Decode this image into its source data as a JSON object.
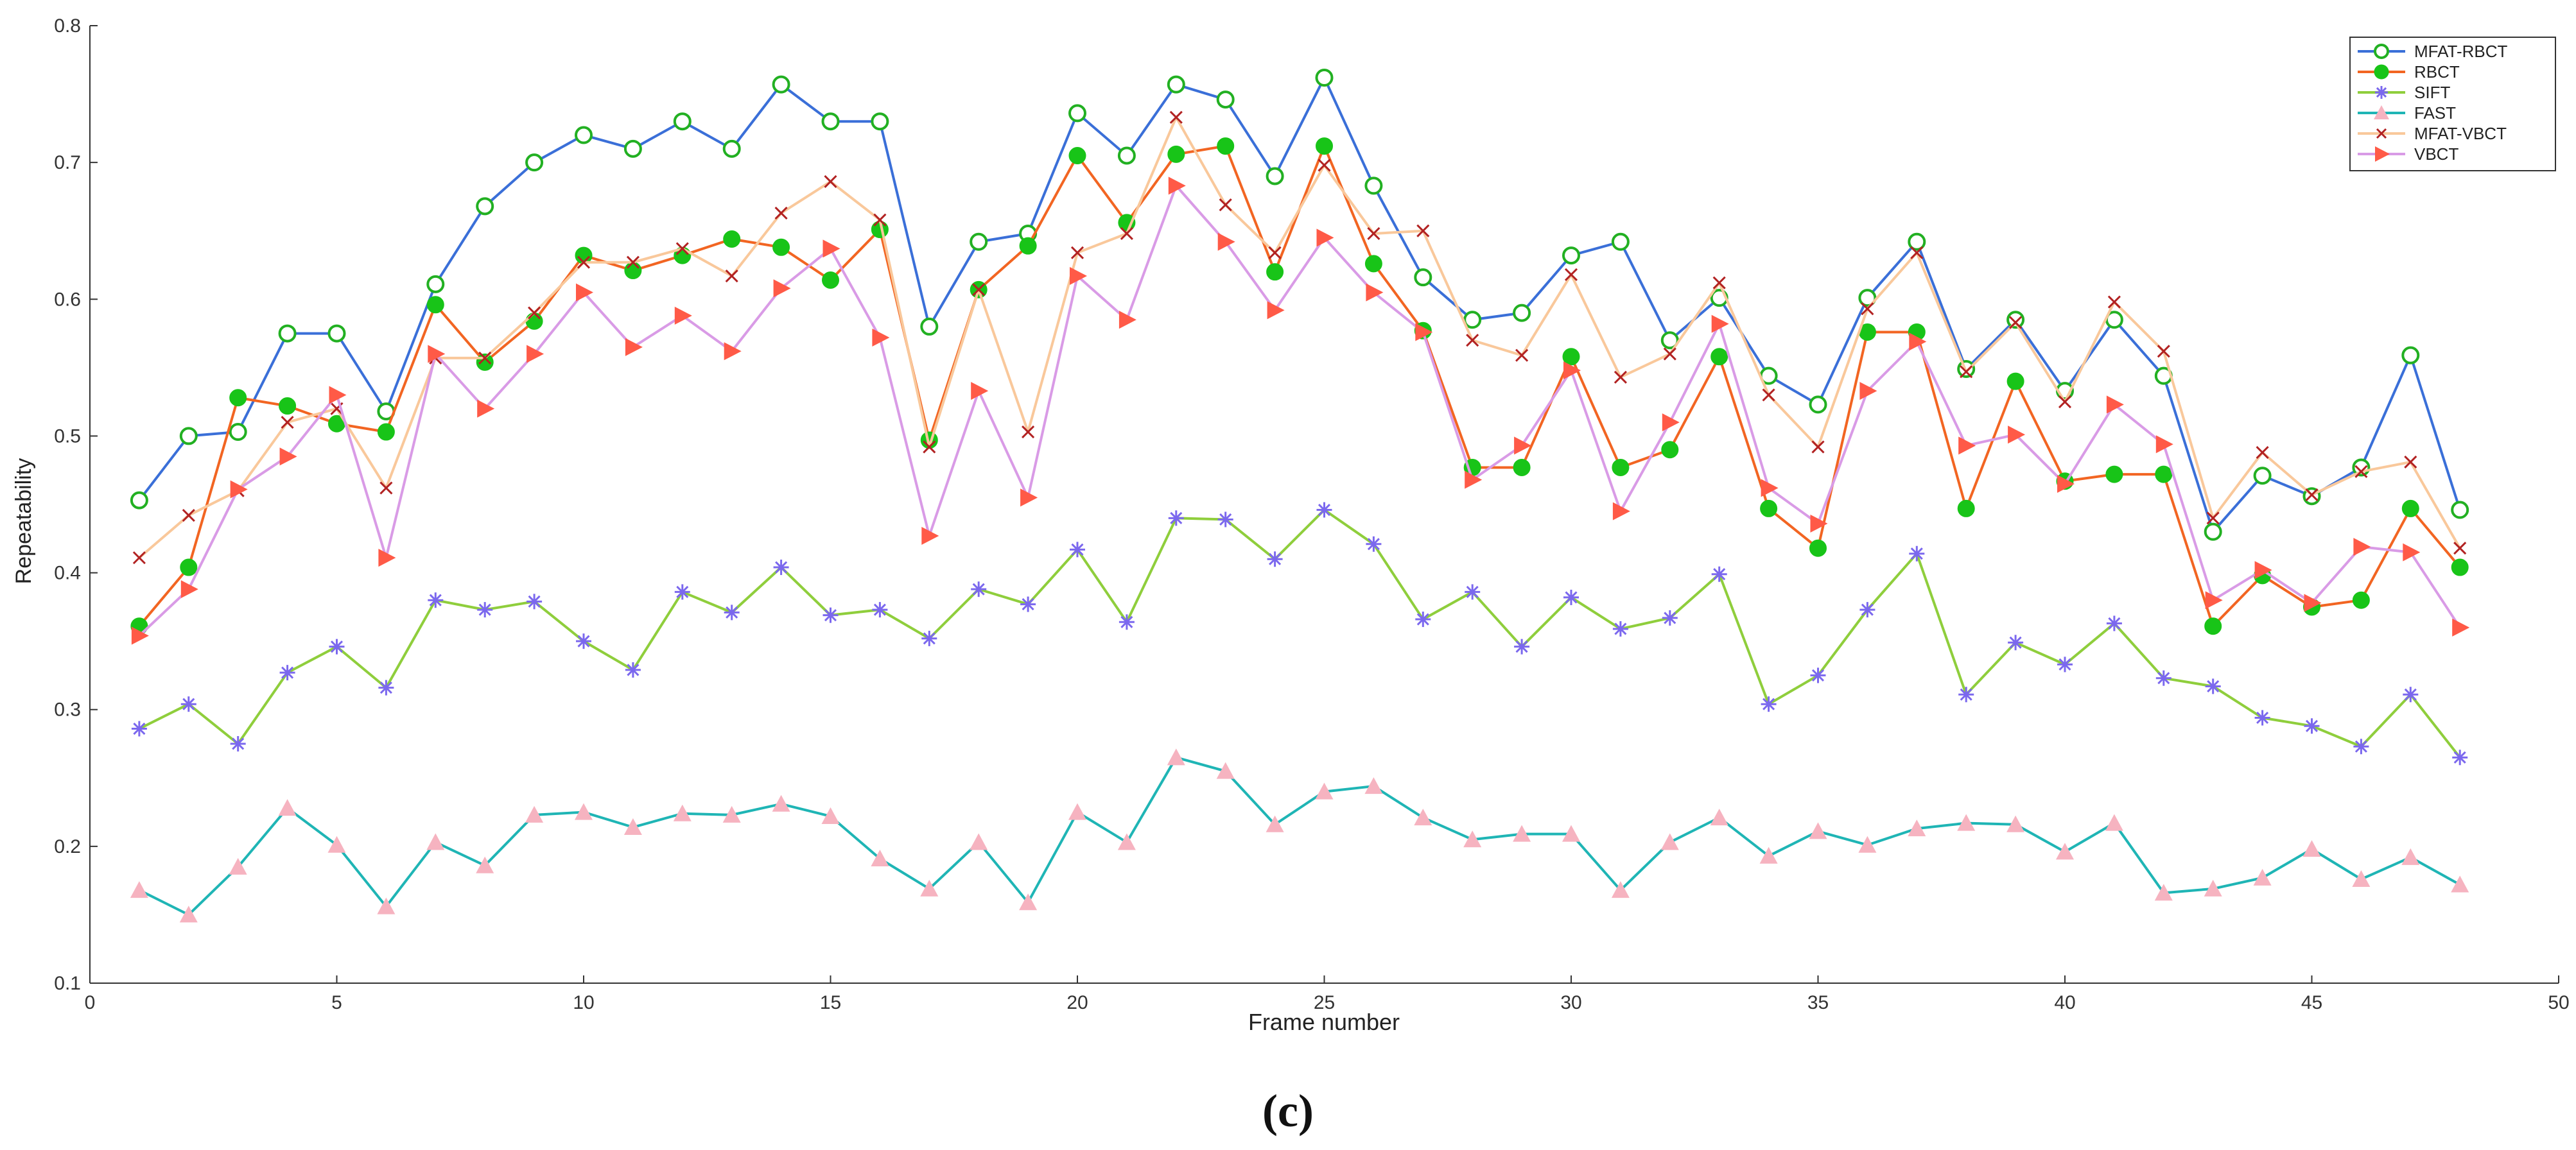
{
  "chart_data": {
    "type": "line",
    "title": "",
    "xlabel": "Frame number",
    "ylabel": "Repeatability",
    "xlim": [
      0,
      50
    ],
    "ylim": [
      0.1,
      0.8
    ],
    "xticks": [
      "0",
      "5",
      "10",
      "15",
      "20",
      "25",
      "30",
      "35",
      "40",
      "45",
      "50"
    ],
    "yticks": [
      "0.1",
      "0.2",
      "0.3",
      "0.4",
      "0.5",
      "0.6",
      "0.7",
      "0.8"
    ],
    "grid": false,
    "legend_position": "top-right",
    "caption": "(c)",
    "x": [
      1,
      2,
      3,
      4,
      5,
      6,
      7,
      8,
      9,
      10,
      11,
      12,
      13,
      14,
      15,
      16,
      17,
      18,
      19,
      20,
      21,
      22,
      23,
      24,
      25,
      26,
      27,
      28,
      29,
      30,
      31,
      32,
      33,
      34,
      35,
      36,
      37,
      38,
      39,
      40,
      41,
      42,
      43,
      44,
      45,
      46,
      47,
      48
    ],
    "series": [
      {
        "name": "MFAT-RBCT",
        "line_color": "#3a6fd8",
        "marker": "open-circle",
        "marker_color": "#22b022",
        "values": [
          0.453,
          0.5,
          0.503,
          0.575,
          0.575,
          0.518,
          0.611,
          0.668,
          0.7,
          0.72,
          0.71,
          0.73,
          0.71,
          0.757,
          0.73,
          0.73,
          0.58,
          0.642,
          0.648,
          0.736,
          0.705,
          0.757,
          0.746,
          0.69,
          0.762,
          0.683,
          0.616,
          0.585,
          0.59,
          0.632,
          0.642,
          0.57,
          0.601,
          0.544,
          0.523,
          0.601,
          0.642,
          0.549,
          0.585,
          0.533,
          0.585,
          0.544,
          0.43,
          0.471,
          0.456,
          0.477,
          0.559,
          0.446
        ]
      },
      {
        "name": "RBCT",
        "line_color": "#f26522",
        "marker": "filled-circle",
        "marker_color": "#18c418",
        "values": [
          0.361,
          0.404,
          0.528,
          0.522,
          0.509,
          0.503,
          0.596,
          0.554,
          0.584,
          0.632,
          0.621,
          0.632,
          0.644,
          0.638,
          0.614,
          0.651,
          0.497,
          0.607,
          0.639,
          0.705,
          0.656,
          0.706,
          0.712,
          0.62,
          0.712,
          0.626,
          0.577,
          0.477,
          0.477,
          0.558,
          0.477,
          0.49,
          0.558,
          0.447,
          0.418,
          0.576,
          0.576,
          0.447,
          0.54,
          0.467,
          0.472,
          0.472,
          0.361,
          0.398,
          0.375,
          0.38,
          0.447,
          0.404
        ]
      },
      {
        "name": "SIFT",
        "line_color": "#8fce3c",
        "marker": "asterisk",
        "marker_color": "#7b68ee",
        "values": [
          0.286,
          0.304,
          0.275,
          0.327,
          0.346,
          0.316,
          0.38,
          0.373,
          0.379,
          0.35,
          0.329,
          0.386,
          0.371,
          0.404,
          0.369,
          0.373,
          0.352,
          0.388,
          0.377,
          0.417,
          0.364,
          0.44,
          0.439,
          0.41,
          0.446,
          0.421,
          0.366,
          0.386,
          0.346,
          0.382,
          0.359,
          0.367,
          0.399,
          0.304,
          0.325,
          0.373,
          0.414,
          0.311,
          0.349,
          0.333,
          0.363,
          0.323,
          0.317,
          0.294,
          0.288,
          0.273,
          0.311,
          0.265
        ]
      },
      {
        "name": "FAST",
        "line_color": "#1fb5b5",
        "marker": "triangle-up",
        "marker_color": "#f6b3c0",
        "values": [
          0.168,
          0.15,
          0.185,
          0.228,
          0.201,
          0.156,
          0.203,
          0.186,
          0.223,
          0.225,
          0.214,
          0.224,
          0.223,
          0.231,
          0.222,
          0.191,
          0.169,
          0.203,
          0.159,
          0.225,
          0.203,
          0.265,
          0.255,
          0.216,
          0.24,
          0.244,
          0.221,
          0.205,
          0.209,
          0.209,
          0.168,
          0.203,
          0.221,
          0.193,
          0.211,
          0.201,
          0.213,
          0.217,
          0.216,
          0.196,
          0.217,
          0.166,
          0.169,
          0.177,
          0.198,
          0.176,
          0.192,
          0.172
        ]
      },
      {
        "name": "MFAT-VBCT",
        "line_color": "#f9c89b",
        "marker": "x",
        "marker_color": "#b22222",
        "values": [
          0.411,
          0.442,
          0.46,
          0.51,
          0.52,
          0.462,
          0.557,
          0.557,
          0.59,
          0.627,
          0.627,
          0.637,
          0.617,
          0.663,
          0.686,
          0.658,
          0.492,
          0.607,
          0.503,
          0.634,
          0.648,
          0.733,
          0.669,
          0.634,
          0.698,
          0.648,
          0.65,
          0.57,
          0.559,
          0.618,
          0.543,
          0.56,
          0.612,
          0.53,
          0.492,
          0.593,
          0.634,
          0.547,
          0.583,
          0.525,
          0.598,
          0.562,
          0.44,
          0.488,
          0.457,
          0.474,
          0.481,
          0.418
        ]
      },
      {
        "name": "VBCT",
        "line_color": "#d99be6",
        "marker": "triangle-right",
        "marker_color": "#ff5a47",
        "values": [
          0.354,
          0.388,
          0.461,
          0.485,
          0.53,
          0.411,
          0.56,
          0.52,
          0.56,
          0.605,
          0.565,
          0.588,
          0.562,
          0.608,
          0.637,
          0.572,
          0.427,
          0.533,
          0.455,
          0.617,
          0.585,
          0.683,
          0.642,
          0.592,
          0.645,
          0.605,
          0.576,
          0.468,
          0.493,
          0.548,
          0.445,
          0.51,
          0.582,
          0.462,
          0.436,
          0.533,
          0.569,
          0.493,
          0.501,
          0.465,
          0.523,
          0.494,
          0.38,
          0.402,
          0.378,
          0.419,
          0.415,
          0.36
        ]
      }
    ]
  }
}
